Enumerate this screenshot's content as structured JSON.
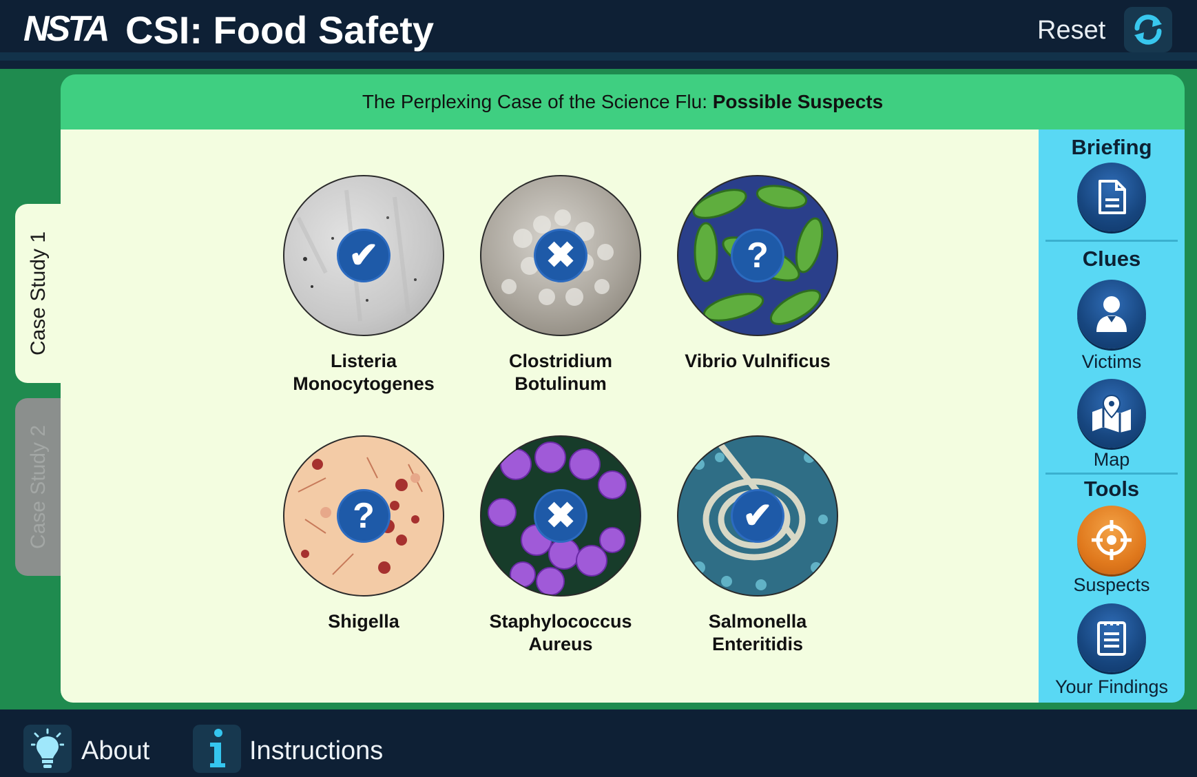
{
  "header": {
    "logo": "NSTA",
    "title": "CSI: Food Safety",
    "reset_label": "Reset"
  },
  "case": {
    "title_prefix": "The Perplexing Case of the Science Flu: ",
    "title_section": "Possible Suspects"
  },
  "tabs": [
    {
      "label": "Case Study 1",
      "active": true
    },
    {
      "label": "Case Study 2",
      "active": false
    }
  ],
  "suspects": [
    {
      "line1": "Listeria",
      "line2": "Monocytogenes",
      "status": "confirmed",
      "symbol": "✔"
    },
    {
      "line1": "Clostridium",
      "line2": "Botulinum",
      "status": "ruled-out",
      "symbol": "✖"
    },
    {
      "line1": "Vibrio Vulnificus",
      "line2": "",
      "status": "unknown",
      "symbol": "?"
    },
    {
      "line1": "Shigella",
      "line2": "",
      "status": "unknown",
      "symbol": "?"
    },
    {
      "line1": "Staphylococcus",
      "line2": "Aureus",
      "status": "ruled-out",
      "symbol": "✖"
    },
    {
      "line1": "Salmonella",
      "line2": "Enteritidis",
      "status": "confirmed",
      "symbol": "✔"
    }
  ],
  "sidebar": {
    "briefing": {
      "heading": "Briefing",
      "icon": "document-icon"
    },
    "clues": {
      "heading": "Clues",
      "victims_label": "Victims",
      "map_label": "Map"
    },
    "tools": {
      "heading": "Tools",
      "suspects_label": "Suspects",
      "findings_label": "Your Findings"
    }
  },
  "footer": {
    "about_label": "About",
    "instructions_label": "Instructions"
  },
  "colors": {
    "header_bg": "#0e2035",
    "frame_green": "#1f8b4f",
    "panel_header_green": "#3fcf81",
    "panel_bg": "#f3fde0",
    "sidebar_cyan": "#59d8f4",
    "badge_blue": "#1e5aa8",
    "active_tool_orange": "#e0791d"
  }
}
